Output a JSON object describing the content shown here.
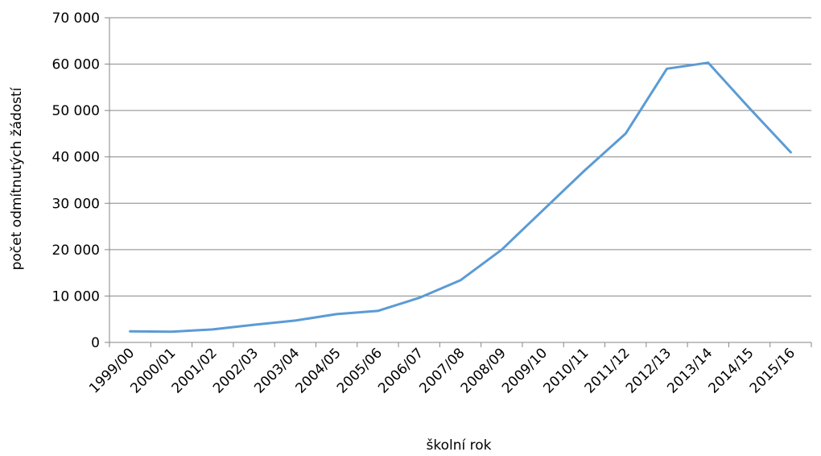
{
  "chart_data": {
    "type": "line",
    "title": "",
    "xlabel": "školní rok",
    "ylabel": "počet odmítnutých žádostí",
    "ylim": [
      0,
      70000
    ],
    "yticks": [
      0,
      10000,
      20000,
      30000,
      40000,
      50000,
      60000,
      70000
    ],
    "ytick_labels": [
      "0",
      "10 000",
      "20 000",
      "30 000",
      "40 000",
      "50 000",
      "60 000",
      "70 000"
    ],
    "grid": "horizontal",
    "legend": "none",
    "line_color": "#5b9bd5",
    "grid_color": "#868686",
    "categories": [
      "1999/00",
      "2000/01",
      "2001/02",
      "2002/03",
      "2003/04",
      "2004/05",
      "2005/06",
      "2006/07",
      "2007/08",
      "2008/09",
      "2009/10",
      "2010/11",
      "2011/12",
      "2012/13",
      "2013/14",
      "2014/15",
      "2015/16"
    ],
    "series": [
      {
        "values": [
          2400,
          2300,
          2800,
          3800,
          4700,
          6100,
          6800,
          9600,
          13400,
          20000,
          28500,
          37000,
          45000,
          59000,
          60300,
          50500,
          41000
        ]
      }
    ]
  }
}
